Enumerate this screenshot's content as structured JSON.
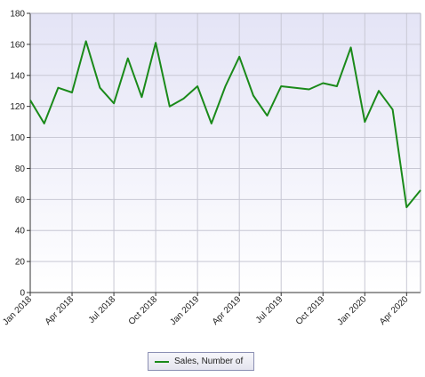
{
  "chart_data": {
    "type": "line",
    "x": [
      "Jan 2018",
      "Feb 2018",
      "Mar 2018",
      "Apr 2018",
      "May 2018",
      "Jun 2018",
      "Jul 2018",
      "Aug 2018",
      "Sep 2018",
      "Oct 2018",
      "Nov 2018",
      "Dec 2018",
      "Jan 2019",
      "Feb 2019",
      "Mar 2019",
      "Apr 2019",
      "May 2019",
      "Jun 2019",
      "Jul 2019",
      "Aug 2019",
      "Sep 2019",
      "Oct 2019",
      "Nov 2019",
      "Dec 2019",
      "Jan 2020",
      "Feb 2020",
      "Mar 2020",
      "Apr 2020",
      "May 2020"
    ],
    "series": [
      {
        "name": "Sales, Number of",
        "values": [
          124,
          109,
          132,
          129,
          162,
          132,
          122,
          151,
          126,
          161,
          120,
          125,
          133,
          109,
          133,
          152,
          127,
          114,
          133,
          132,
          131,
          135,
          133,
          158,
          110,
          130,
          118,
          55,
          66
        ],
        "color": "#1a8a1a"
      }
    ],
    "x_tick_labels": [
      "Jan 2018",
      "Apr 2018",
      "Jul 2018",
      "Oct 2018",
      "Jan 2019",
      "Apr 2019",
      "Jul 2019",
      "Oct 2019",
      "Jan 2020",
      "Apr 2020"
    ],
    "y_tick_labels": [
      "0",
      "20",
      "40",
      "60",
      "80",
      "100",
      "120",
      "140",
      "160",
      "180"
    ],
    "ylim": [
      0,
      180
    ],
    "grid": true,
    "legend_position": "bottom-center",
    "title": "",
    "xlabel": "",
    "ylabel": "",
    "colors": {
      "plot_bg_top": "#e4e4f6",
      "plot_bg_bottom": "#ffffff",
      "grid": "#c8c8d4"
    }
  }
}
